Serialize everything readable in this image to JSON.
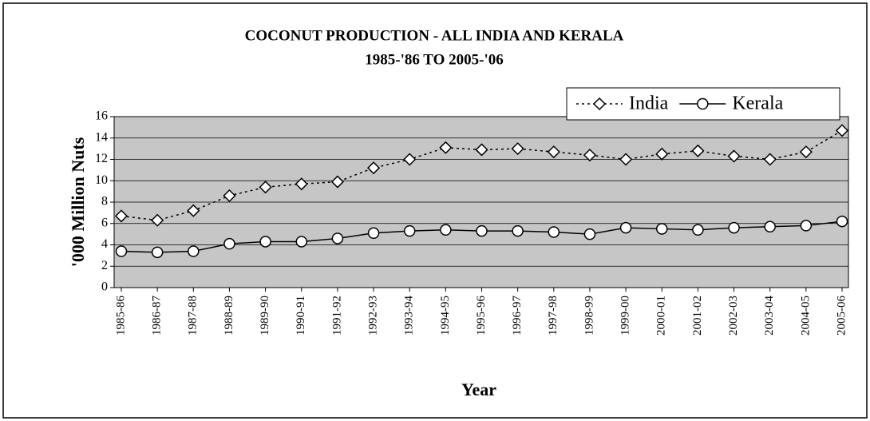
{
  "chart_data": {
    "type": "line",
    "title": "COCONUT PRODUCTION - ALL INDIA AND KERALA",
    "subtitle": "1985-'86 TO 2005-'06",
    "x_label": "Year",
    "y_label": "'000 Million Nuts",
    "categories": [
      "1985-86",
      "1986-87",
      "1987-88",
      "1988-89",
      "1989-90",
      "1990-91",
      "1991-92",
      "1992-93",
      "1993-94",
      "1994-95",
      "1995-96",
      "1996-97",
      "1997-98",
      "1998-99",
      "1999-00",
      "2000-01",
      "2001-02",
      "2002-03",
      "2003-04",
      "2004-05",
      "2005-06"
    ],
    "series": [
      {
        "name": "India",
        "color": "#000000",
        "values": [
          6.7,
          6.3,
          7.2,
          8.6,
          9.4,
          9.7,
          9.9,
          11.2,
          12.0,
          13.1,
          12.9,
          13.0,
          12.7,
          12.4,
          12.0,
          12.5,
          12.8,
          12.3,
          12.0,
          12.7,
          14.7
        ]
      },
      {
        "name": "Kerala",
        "color": "#000000",
        "values": [
          3.4,
          3.3,
          3.4,
          4.1,
          4.3,
          4.3,
          4.6,
          5.1,
          5.3,
          5.4,
          5.3,
          5.3,
          5.2,
          5.0,
          5.6,
          5.5,
          5.4,
          5.6,
          5.7,
          5.8,
          6.2
        ]
      }
    ],
    "ylim": [
      0,
      16
    ],
    "yticks": [
      0,
      2,
      4,
      6,
      8,
      10,
      12,
      14,
      16
    ],
    "grid": true,
    "legend": "top-right"
  }
}
